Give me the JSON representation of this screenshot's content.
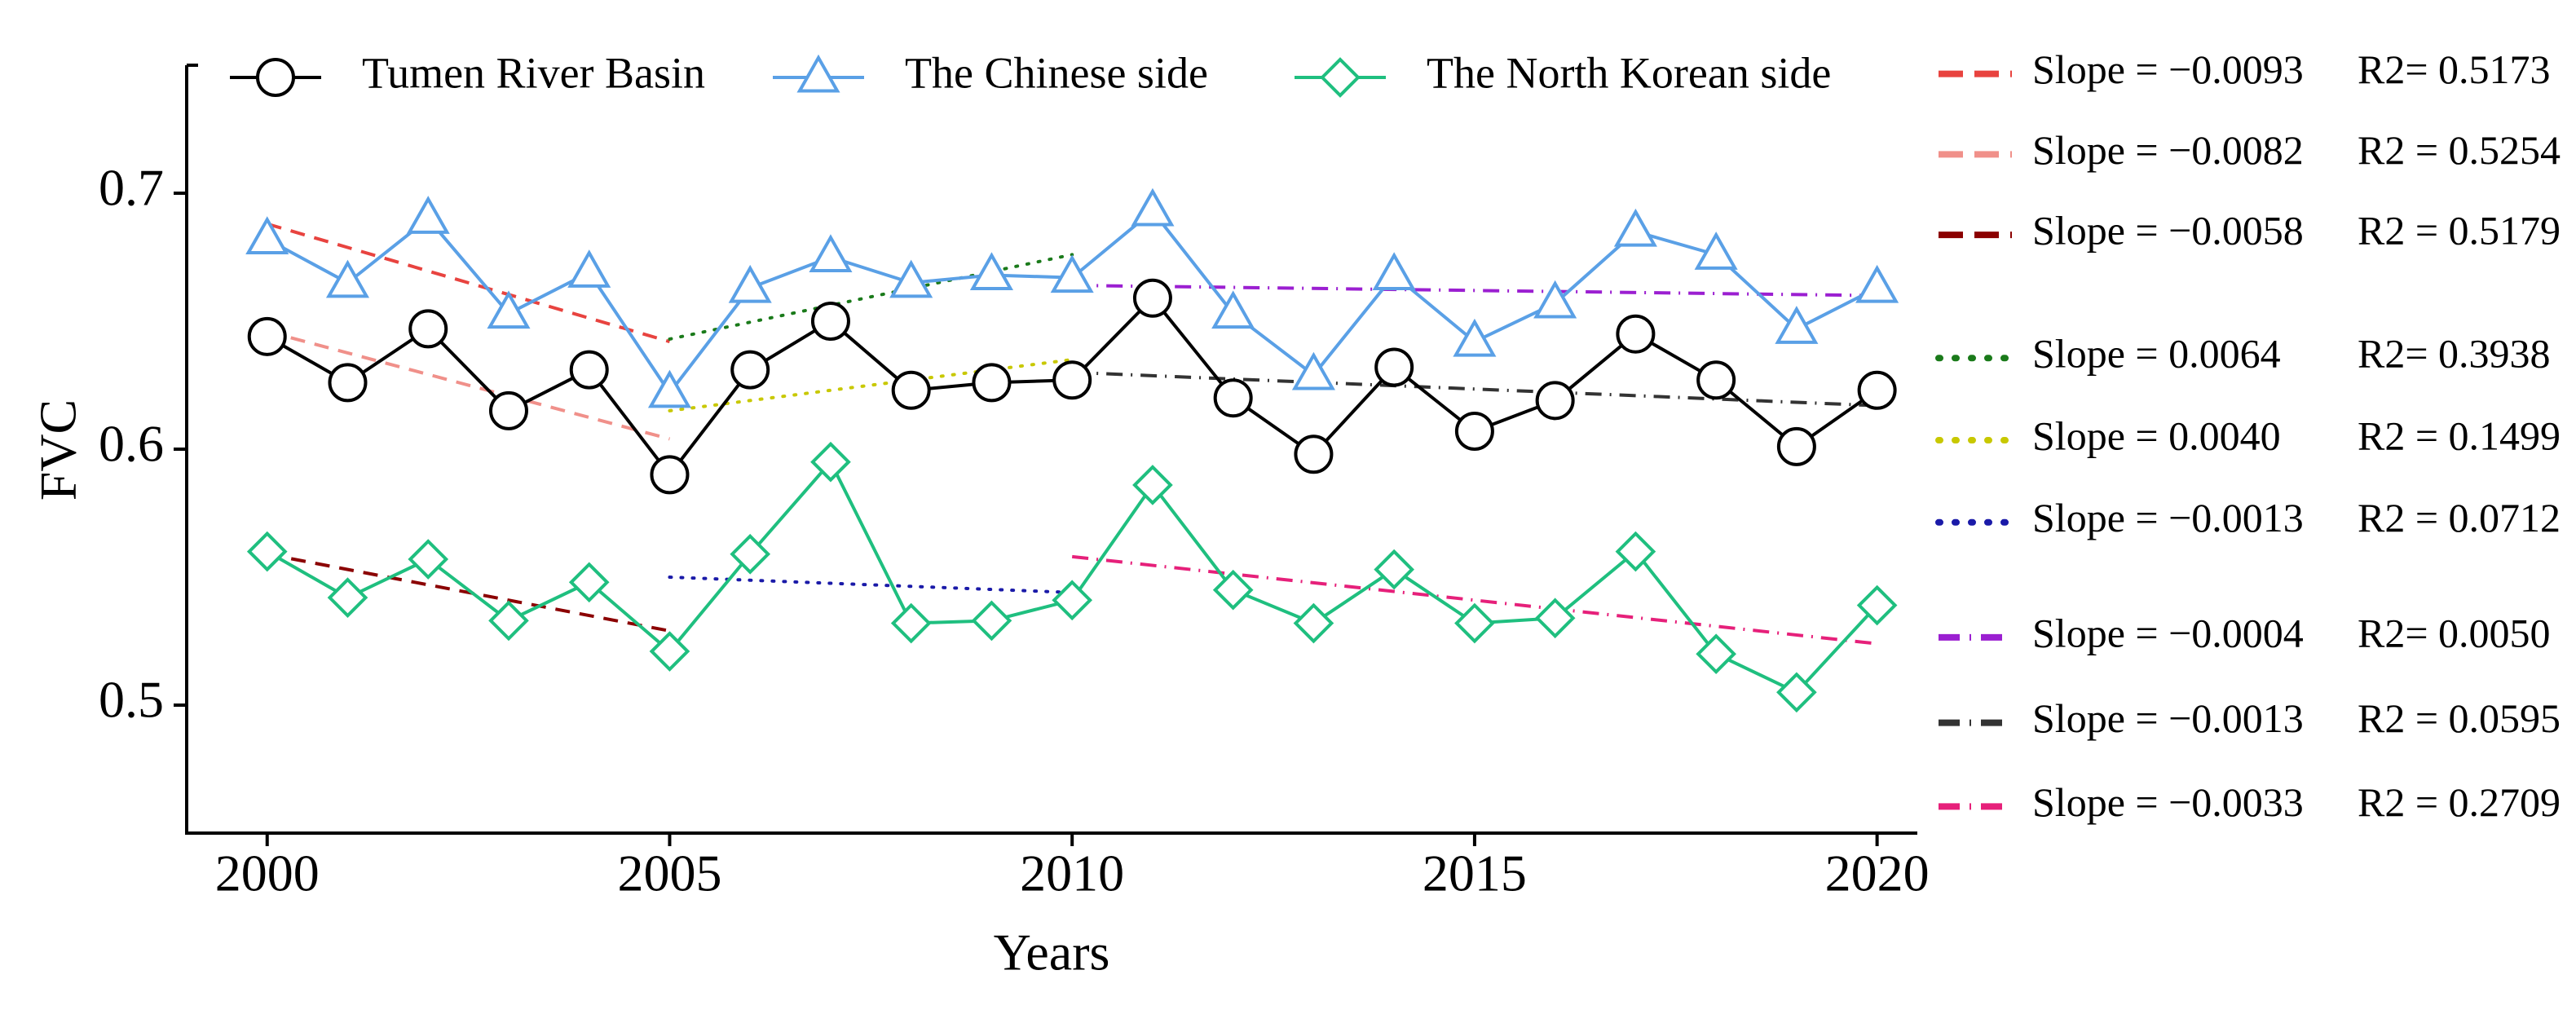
{
  "chart_data": {
    "type": "line",
    "x_label": "Years",
    "y_label": "FVC",
    "x": [
      2000,
      2001,
      2002,
      2003,
      2004,
      2005,
      2006,
      2007,
      2008,
      2009,
      2010,
      2011,
      2012,
      2013,
      2014,
      2015,
      2016,
      2017,
      2018,
      2019,
      2020
    ],
    "series": [
      {
        "name": "Tumen River Basin",
        "color": "#000000",
        "marker": "circle",
        "values": [
          0.644,
          0.626,
          0.647,
          0.615,
          0.631,
          0.59,
          0.631,
          0.65,
          0.623,
          0.626,
          0.627,
          0.659,
          0.62,
          0.598,
          0.632,
          0.607,
          0.619,
          0.645,
          0.627,
          0.601,
          0.623
        ]
      },
      {
        "name": "The Chinese side",
        "color": "#5aa0e6",
        "marker": "triangle",
        "values": [
          0.682,
          0.665,
          0.69,
          0.653,
          0.669,
          0.622,
          0.663,
          0.675,
          0.665,
          0.668,
          0.667,
          0.693,
          0.653,
          0.629,
          0.668,
          0.642,
          0.657,
          0.685,
          0.676,
          0.647,
          0.663
        ]
      },
      {
        "name": "The North Korean side",
        "color": "#1fbf7f",
        "marker": "diamond",
        "values": [
          0.56,
          0.542,
          0.557,
          0.533,
          0.548,
          0.521,
          0.559,
          0.595,
          0.532,
          0.533,
          0.541,
          0.586,
          0.545,
          0.532,
          0.553,
          0.532,
          0.534,
          0.56,
          0.52,
          0.505,
          0.539
        ]
      }
    ],
    "trend_lines": [
      {
        "name": "Slope = −0.0093",
        "r2": "R2= 0.5173",
        "color": "#e8433f",
        "dash": "dashed",
        "x": [
          2000,
          2005
        ],
        "values": [
          0.688,
          0.642
        ]
      },
      {
        "name": "Slope = −0.0082",
        "r2": "R2 = 0.5254",
        "color": "#f0908a",
        "dash": "dashed",
        "x": [
          2000,
          2005
        ],
        "values": [
          0.646,
          0.604
        ]
      },
      {
        "name": "Slope = −0.0058",
        "r2": "R2 = 0.5179",
        "color": "#8b0000",
        "dash": "dashed",
        "x": [
          2000,
          2005
        ],
        "values": [
          0.559,
          0.529
        ]
      },
      {
        "name": "Slope = 0.0064",
        "r2": "R2= 0.3938",
        "color": "#1a7a1a",
        "dash": "dotted",
        "x": [
          2005,
          2010
        ],
        "values": [
          0.643,
          0.676
        ]
      },
      {
        "name": "Slope = 0.0040",
        "r2": "R2 = 0.1499",
        "color": "#c8c800",
        "dash": "dotted",
        "x": [
          2005,
          2010
        ],
        "values": [
          0.615,
          0.635
        ]
      },
      {
        "name": "Slope = −0.0013",
        "r2": "R2 = 0.0712",
        "color": "#1a1aa8",
        "dash": "dotted",
        "x": [
          2005,
          2010
        ],
        "values": [
          0.55,
          0.544
        ]
      },
      {
        "name": "Slope = −0.0004",
        "r2": "R2= 0.0050",
        "color": "#9b1fd1",
        "dash": "dashdot",
        "x": [
          2010,
          2020
        ],
        "values": [
          0.664,
          0.66
        ]
      },
      {
        "name": "Slope = −0.0013",
        "r2": "R2 = 0.0595",
        "color": "#333333",
        "dash": "dashdot",
        "x": [
          2010,
          2020
        ],
        "values": [
          0.63,
          0.617
        ]
      },
      {
        "name": "Slope = −0.0033",
        "r2": "R2 = 0.2709",
        "color": "#e6207a",
        "dash": "dashdot",
        "x": [
          2010,
          2020
        ],
        "values": [
          0.558,
          0.524
        ]
      }
    ],
    "xlim": [
      1999,
      2020.5
    ],
    "xticks": [
      2000,
      2005,
      2010,
      2015,
      2020
    ],
    "ylim": [
      0.45,
      0.75
    ],
    "yticks": [
      0.5,
      0.6,
      0.7
    ]
  }
}
